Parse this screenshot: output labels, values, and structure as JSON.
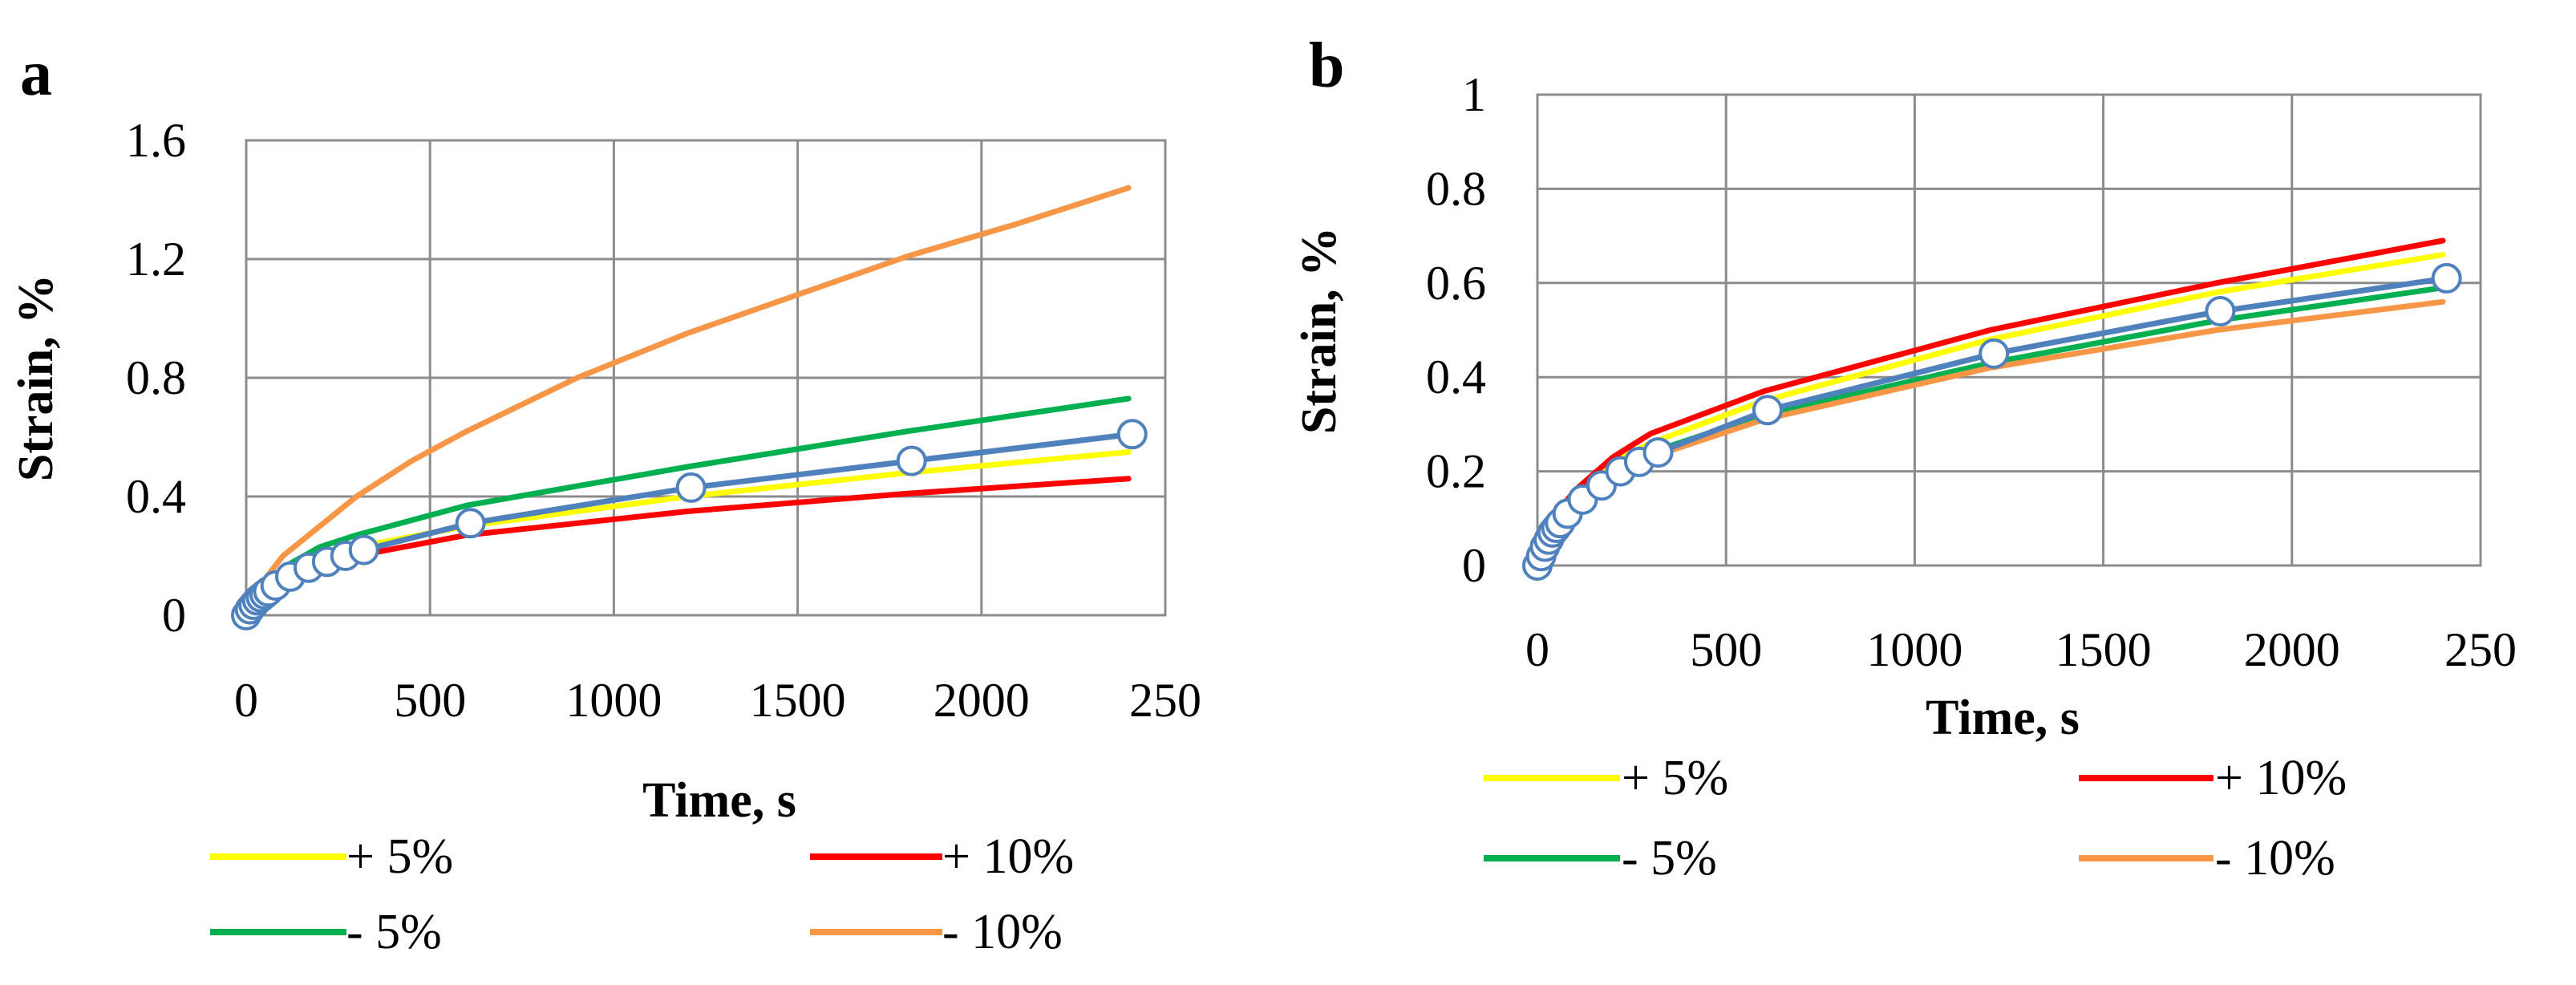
{
  "chart_data": [
    {
      "type": "line",
      "panel_label": "a",
      "xlabel": "Time, s",
      "ylabel": "Strain, %",
      "xlim": [
        0,
        2500
      ],
      "ylim": [
        0,
        1.6
      ],
      "x_ticks": [
        "0",
        "500",
        "1000",
        "1500",
        "2000",
        "250"
      ],
      "y_ticks": [
        "0",
        "0.4",
        "0.8",
        "1.2",
        "1.6"
      ],
      "grid": true,
      "legend_position": "bottom",
      "series": [
        {
          "name": "+ 5%",
          "color": "#ffff00",
          "marker": "none",
          "x": [
            0,
            50,
            100,
            200,
            300,
            600,
            1200,
            1800,
            2400
          ],
          "y": [
            0,
            0.09,
            0.14,
            0.2,
            0.23,
            0.3,
            0.4,
            0.48,
            0.55
          ]
        },
        {
          "name": "+ 10%",
          "color": "#ff0000",
          "marker": "none",
          "x": [
            0,
            50,
            100,
            200,
            300,
            600,
            1200,
            1800,
            2400
          ],
          "y": [
            0,
            0.08,
            0.13,
            0.18,
            0.2,
            0.27,
            0.35,
            0.41,
            0.46
          ]
        },
        {
          "name": "- 5%",
          "color": "#00b050",
          "marker": "none",
          "x": [
            0,
            50,
            100,
            200,
            300,
            600,
            1200,
            1800,
            2400
          ],
          "y": [
            0,
            0.1,
            0.16,
            0.23,
            0.27,
            0.37,
            0.5,
            0.62,
            0.73
          ]
        },
        {
          "name": "- 10%",
          "color": "#f79646",
          "marker": "none",
          "x": [
            0,
            50,
            100,
            200,
            300,
            450,
            600,
            900,
            1200,
            1500,
            1800,
            2100,
            2400
          ],
          "y": [
            0,
            0.12,
            0.2,
            0.3,
            0.4,
            0.52,
            0.62,
            0.8,
            0.95,
            1.08,
            1.21,
            1.32,
            1.44
          ]
        },
        {
          "name": "",
          "color": "#4f81bd",
          "marker": "circle",
          "x": [
            0,
            10,
            20,
            30,
            40,
            50,
            60,
            80,
            120,
            170,
            220,
            270,
            320,
            610,
            1210,
            1810,
            2410
          ],
          "y": [
            0,
            0.02,
            0.035,
            0.05,
            0.06,
            0.07,
            0.08,
            0.1,
            0.13,
            0.16,
            0.18,
            0.2,
            0.22,
            0.31,
            0.43,
            0.52,
            0.61
          ]
        }
      ]
    },
    {
      "type": "line",
      "panel_label": "b",
      "xlabel": "Time, s",
      "ylabel": "Strain, %",
      "xlim": [
        0,
        2500
      ],
      "ylim": [
        0,
        1
      ],
      "x_ticks": [
        "0",
        "500",
        "1000",
        "1500",
        "2000",
        "250"
      ],
      "y_ticks": [
        "0",
        "0.2",
        "0.4",
        "0.6",
        "0.8",
        "1"
      ],
      "grid": true,
      "legend_position": "bottom",
      "series": [
        {
          "name": "+ 5%",
          "color": "#ffff00",
          "marker": "none",
          "x": [
            0,
            50,
            100,
            200,
            300,
            600,
            1200,
            1800,
            2400
          ],
          "y": [
            0,
            0.1,
            0.15,
            0.22,
            0.26,
            0.35,
            0.48,
            0.58,
            0.66
          ]
        },
        {
          "name": "+ 10%",
          "color": "#ff0000",
          "marker": "none",
          "x": [
            0,
            50,
            100,
            200,
            300,
            600,
            1200,
            1800,
            2400
          ],
          "y": [
            0,
            0.11,
            0.16,
            0.23,
            0.28,
            0.37,
            0.5,
            0.6,
            0.69
          ]
        },
        {
          "name": "- 5%",
          "color": "#00b050",
          "marker": "none",
          "x": [
            0,
            50,
            100,
            200,
            300,
            600,
            1200,
            1800,
            2400
          ],
          "y": [
            0,
            0.09,
            0.14,
            0.2,
            0.24,
            0.32,
            0.43,
            0.52,
            0.59
          ]
        },
        {
          "name": "- 10%",
          "color": "#f79646",
          "marker": "none",
          "x": [
            0,
            50,
            100,
            200,
            300,
            600,
            1200,
            1800,
            2400
          ],
          "y": [
            0,
            0.08,
            0.13,
            0.19,
            0.23,
            0.31,
            0.42,
            0.5,
            0.56
          ]
        },
        {
          "name": "",
          "color": "#4f81bd",
          "marker": "circle",
          "x": [
            0,
            10,
            20,
            30,
            40,
            50,
            60,
            80,
            120,
            170,
            220,
            270,
            320,
            610,
            1210,
            1810,
            2410
          ],
          "y": [
            0,
            0.02,
            0.04,
            0.055,
            0.07,
            0.08,
            0.09,
            0.11,
            0.14,
            0.17,
            0.2,
            0.22,
            0.24,
            0.33,
            0.45,
            0.54,
            0.61
          ]
        }
      ]
    }
  ]
}
